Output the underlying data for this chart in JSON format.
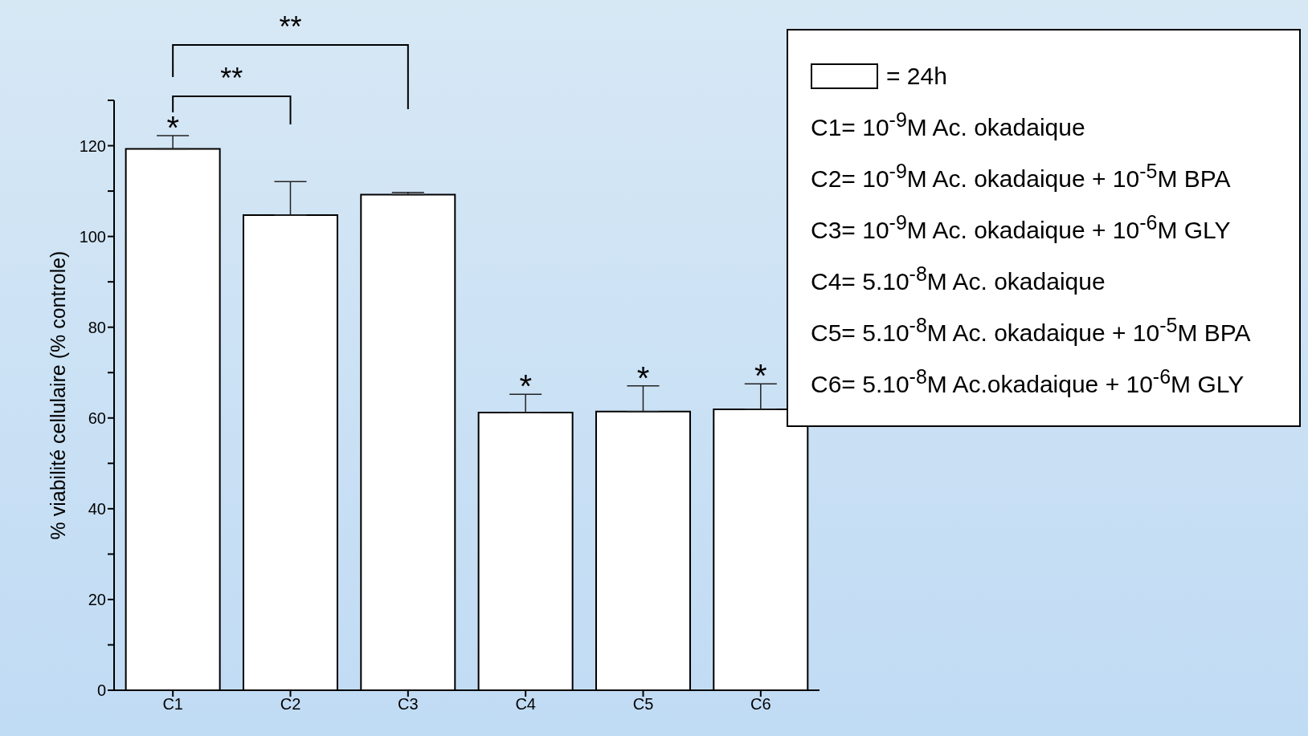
{
  "chart_data": {
    "type": "bar",
    "ylabel": "% viabilité cellulaire (% controle)",
    "categories": [
      "C1",
      "C2",
      "C3",
      "C4",
      "C5",
      "C6"
    ],
    "series": [
      {
        "name": "= 24h",
        "color": "#ffffff",
        "values": [
          119.3,
          104.7,
          109.2,
          61.2,
          61.4,
          61.9
        ],
        "errors": [
          2.9,
          7.4,
          0.5,
          4,
          5.7,
          5.6
        ]
      }
    ],
    "ylim": [
      0,
      130
    ],
    "yticks": [
      0,
      {
        "value": 10,
        "label": null
      },
      20,
      {
        "value": 30,
        "label": null
      },
      40,
      {
        "value": 50,
        "label": null
      },
      60,
      {
        "value": 70,
        "label": null
      },
      80,
      {
        "value": 90,
        "label": null
      },
      100,
      {
        "value": 110,
        "label": null
      },
      120,
      {
        "value": 130,
        "label": null
      }
    ],
    "legend": "top right",
    "annotations": [
      {
        "text": "*",
        "x": "C1",
        "y": 119.3
      },
      {
        "text": "*",
        "x": "C4",
        "y": 61.2
      },
      {
        "text": "*",
        "x": "C5",
        "y": 61.4
      },
      {
        "text": "*",
        "x": "C6",
        "y": 61.9
      },
      "**",
      "**",
      "C1= 10$^{-9}$M Ac. okadaique",
      "C2= 10$^{-9}$M Ac. okadaique + 10$^{-5}$M BPA",
      "C3= 10$^{-9}$M Ac. okadaique + 10$^{-6}$M GLY",
      "C4= 5.10$^{-8}$M Ac. okadaique",
      "C5= 5.10$^{-8}$M Ac. okadaique + 10$^{-5}$M BPA",
      "C6= 5.10$^{-8}$M Ac.okadaique + 10$^{-6}$M GLY"
    ]
  }
}
